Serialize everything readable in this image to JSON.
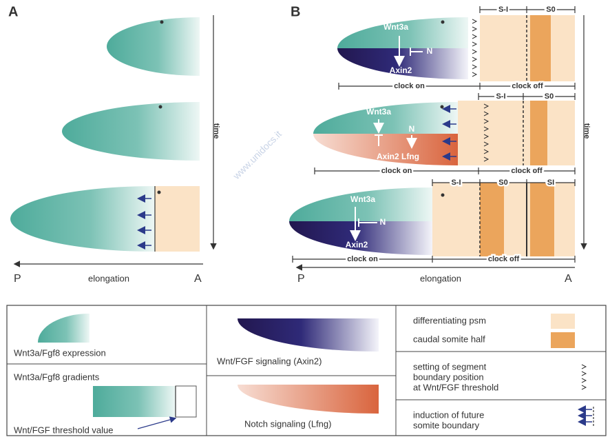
{
  "panel_a": {
    "label": "A",
    "time": "time",
    "axis": {
      "left": "P",
      "middle": "elongation",
      "right": "A"
    }
  },
  "panel_b": {
    "label": "B",
    "time": "time",
    "rows": [
      {
        "wnt": "Wnt3a",
        "notch": "N",
        "readout": "Axin2",
        "clock_on": "clock on",
        "clock_off": "clock off",
        "somites": [
          "S-I",
          "S0"
        ]
      },
      {
        "wnt": "Wnt3a",
        "notch": "N",
        "readout": "Axin2 Lfng",
        "clock_on": "clock on",
        "clock_off": "clock off",
        "somites": [
          "S-I",
          "S0"
        ]
      },
      {
        "wnt": "Wnt3a",
        "notch": "N",
        "readout": "Axin2",
        "clock_on": "clock on",
        "clock_off": "clock off",
        "somites": [
          "S-I",
          "S0",
          "SI"
        ]
      }
    ],
    "axis": {
      "left": "P",
      "middle": "elongation",
      "right": "A"
    }
  },
  "legend": {
    "expression": "Wnt3a/Fgf8 expression",
    "gradients": "Wnt3a/Fgf8 gradients",
    "threshold": "Wnt/FGF threshold value",
    "axin2": "Wnt/FGF signaling (Axin2)",
    "lfng": "Notch signaling (Lfng)",
    "psm": "differentiating psm",
    "caudal": "caudal somite half",
    "boundary_setting": [
      "setting of segment",
      "boundary position",
      "at Wnt/FGF threshold"
    ],
    "boundary_induction": [
      "induction of future",
      "somite boundary"
    ]
  },
  "watermark": "www.unidocs.it"
}
